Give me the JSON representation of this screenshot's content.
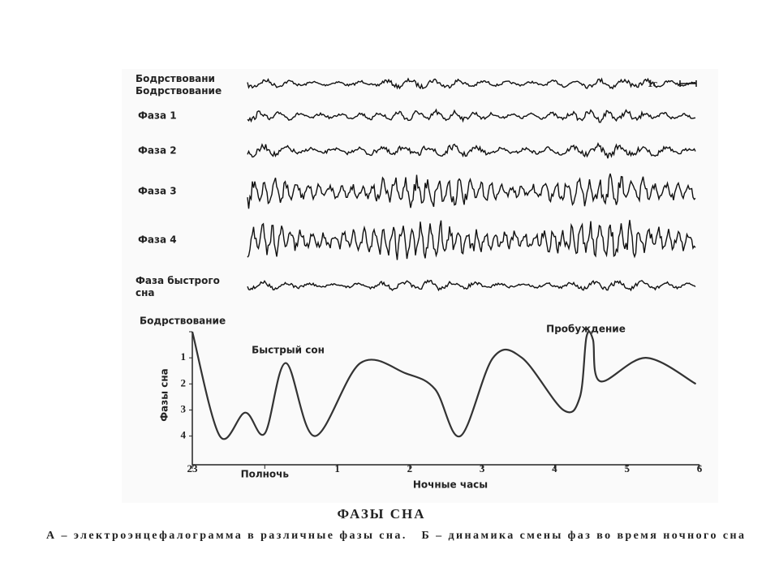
{
  "eeg": {
    "scale_label": "1с",
    "traces": [
      {
        "label": "Бодрствование"
      },
      {
        "label": "Фаза 1"
      },
      {
        "label": "Фаза 2"
      },
      {
        "label": "Фаза 3"
      },
      {
        "label": "Фаза 4"
      },
      {
        "label": "Фаза быстрого сна"
      }
    ]
  },
  "chart_data": {
    "type": "line",
    "x_label": "Ночные часы",
    "y_label": "Фазы сна",
    "x": [
      -1,
      -0.62,
      -0.27,
      0,
      0.29,
      0.69,
      1.32,
      1.95,
      2.35,
      2.7,
      3.15,
      3.55,
      4.12,
      4.35,
      4.44,
      4.53,
      4.63,
      5.26,
      5.95
    ],
    "values": [
      0,
      4,
      3.1,
      3.9,
      1.2,
      4,
      1.2,
      1.6,
      2.2,
      4,
      1,
      1,
      3,
      2.5,
      0.2,
      0.3,
      1.9,
      1,
      2
    ],
    "color": "#333333",
    "xlim": [
      -1,
      6
    ],
    "ylim": [
      0,
      5.1
    ],
    "y_inverted": true,
    "xticks": [
      {
        "value": -1,
        "label": "23"
      },
      {
        "value": 0,
        "label": "Полночь"
      },
      1,
      2,
      3,
      4,
      5,
      6
    ],
    "yticks": [
      {
        "value": 0,
        "label": "Бодрствование"
      },
      1,
      2,
      3,
      4
    ],
    "annotations": [
      {
        "text": "Быстрый сон"
      },
      {
        "text": "Пробуждение"
      }
    ]
  },
  "caption": {
    "title": "ФАЗЫ СНА",
    "text": "А – электроэнцефалограмма в различные фазы сна.   Б – динамика смены фаз во время ночного сна"
  }
}
